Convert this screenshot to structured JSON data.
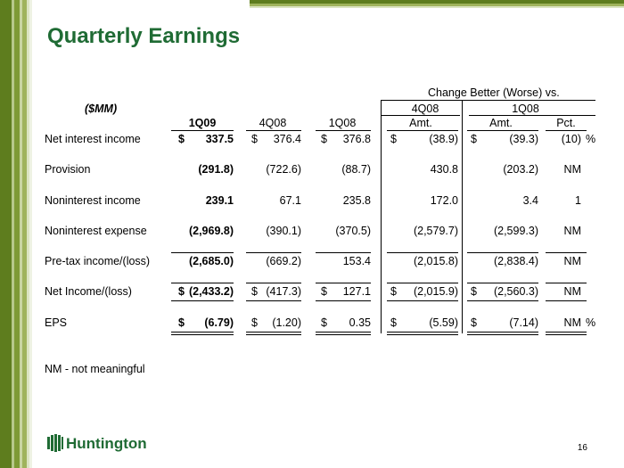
{
  "title": "Quarterly Earnings",
  "units_label": "($MM)",
  "change_header": "Change Better (Worse) vs.",
  "group_headers": [
    "4Q08",
    "1Q08"
  ],
  "column_headers": [
    "1Q09",
    "4Q08",
    "1Q08",
    "Amt.",
    "Amt.",
    "Pct."
  ],
  "rows": [
    {
      "label": "Net interest income",
      "c1": [
        "$",
        "337.5"
      ],
      "c2": [
        "$",
        "376.4"
      ],
      "c3": [
        "$",
        "376.8"
      ],
      "c4": [
        "$",
        "(38.9)"
      ],
      "c5": [
        "$",
        "(39.3)"
      ],
      "c6": "(10)",
      "c6_suffix": "%"
    },
    {
      "label": "Provision",
      "c1": [
        "",
        "(291.8)"
      ],
      "c2": [
        "",
        "(722.6)"
      ],
      "c3": [
        "",
        "(88.7)"
      ],
      "c4": [
        "",
        "430.8"
      ],
      "c5": [
        "",
        "(203.2)"
      ],
      "c6": "NM",
      "c6_suffix": ""
    },
    {
      "label": "Noninterest income",
      "c1": [
        "",
        "239.1"
      ],
      "c2": [
        "",
        "67.1"
      ],
      "c3": [
        "",
        "235.8"
      ],
      "c4": [
        "",
        "172.0"
      ],
      "c5": [
        "",
        "3.4"
      ],
      "c6": "1",
      "c6_suffix": ""
    },
    {
      "label": "Noninterest expense",
      "c1": [
        "",
        "(2,969.8)"
      ],
      "c2": [
        "",
        "(390.1)"
      ],
      "c3": [
        "",
        "(370.5)"
      ],
      "c4": [
        "",
        "(2,579.7)"
      ],
      "c5": [
        "",
        "(2,599.3)"
      ],
      "c6": "NM",
      "c6_suffix": ""
    },
    {
      "label": "Pre-tax income/(loss)",
      "c1": [
        "",
        "(2,685.0)"
      ],
      "c2": [
        "",
        "(669.2)"
      ],
      "c3": [
        "",
        "153.4"
      ],
      "c4": [
        "",
        "(2,015.8)"
      ],
      "c5": [
        "",
        "(2,838.4)"
      ],
      "c6": "NM",
      "c6_suffix": ""
    },
    {
      "label": "Net Income/(loss)",
      "c1": [
        "$",
        "(2,433.2)"
      ],
      "c2": [
        "$",
        "(417.3)"
      ],
      "c3": [
        "$",
        "127.1"
      ],
      "c4": [
        "$",
        "(2,015.9)"
      ],
      "c5": [
        "$",
        "(2,560.3)"
      ],
      "c6": "NM",
      "c6_suffix": ""
    },
    {
      "label": "EPS",
      "c1": [
        "$",
        "(6.79)"
      ],
      "c2": [
        "$",
        "(1.20)"
      ],
      "c3": [
        "$",
        "0.35"
      ],
      "c4": [
        "$",
        "(5.59)"
      ],
      "c5": [
        "$",
        "(7.14)"
      ],
      "c6": "NM",
      "c6_suffix": "%"
    }
  ],
  "footnote": "NM - not meaningful",
  "logo_text": "Huntington",
  "page_number": "16",
  "colors": {
    "title": "#1f6b34",
    "stripe_dark": "#5e7d1e",
    "stripe_light": "#b7c88a"
  }
}
